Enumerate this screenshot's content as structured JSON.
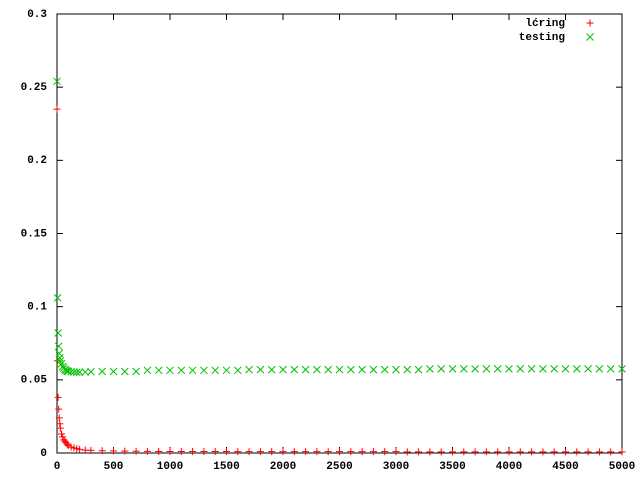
{
  "chart_data": {
    "type": "scatter",
    "x": [
      0,
      5,
      10,
      15,
      20,
      25,
      30,
      40,
      50,
      60,
      70,
      80,
      90,
      100,
      125,
      150,
      175,
      200,
      250,
      300,
      400,
      500,
      600,
      700,
      800,
      900,
      1000,
      1100,
      1200,
      1300,
      1400,
      1500,
      1600,
      1700,
      1800,
      1900,
      2000,
      2100,
      2200,
      2300,
      2400,
      2500,
      2600,
      2700,
      2800,
      2900,
      3000,
      3100,
      3200,
      3300,
      3400,
      3500,
      3600,
      3700,
      3800,
      3900,
      4000,
      4100,
      4200,
      4300,
      4400,
      4500,
      4600,
      4700,
      4800,
      4900,
      5000
    ],
    "series": [
      {
        "name": "lćring",
        "color": "#ff0000",
        "marker": "plus",
        "values": [
          0.235,
          0.063,
          0.038,
          0.03,
          0.024,
          0.02,
          0.017,
          0.013,
          0.011,
          0.009,
          0.008,
          0.007,
          0.006,
          0.005,
          0.004,
          0.0035,
          0.003,
          0.0025,
          0.002,
          0.0018,
          0.0015,
          0.0014,
          0.0013,
          0.0012,
          0.0011,
          0.001,
          0.001,
          0.001,
          0.001,
          0.001,
          0.001,
          0.001,
          0.0009,
          0.0009,
          0.0009,
          0.0009,
          0.0009,
          0.0009,
          0.0009,
          0.0009,
          0.0009,
          0.0009,
          0.0009,
          0.0009,
          0.0009,
          0.0009,
          0.0009,
          0.0008,
          0.0008,
          0.0008,
          0.0008,
          0.0008,
          0.0008,
          0.0008,
          0.0008,
          0.0008,
          0.0008,
          0.0008,
          0.0008,
          0.0008,
          0.0008,
          0.0008,
          0.0008,
          0.0008,
          0.0008,
          0.0008,
          0.0008
        ]
      },
      {
        "name": "testing",
        "color": "#00c000",
        "marker": "cross",
        "values": [
          0.254,
          0.106,
          0.082,
          0.073,
          0.068,
          0.065,
          0.063,
          0.061,
          0.059,
          0.058,
          0.057,
          0.0565,
          0.056,
          0.0558,
          0.0555,
          0.0553,
          0.0552,
          0.0552,
          0.0553,
          0.0555,
          0.0557,
          0.0557,
          0.0557,
          0.0557,
          0.0565,
          0.0565,
          0.0565,
          0.0565,
          0.0565,
          0.0565,
          0.0565,
          0.0565,
          0.0565,
          0.057,
          0.057,
          0.057,
          0.057,
          0.057,
          0.057,
          0.057,
          0.057,
          0.057,
          0.057,
          0.057,
          0.057,
          0.057,
          0.057,
          0.057,
          0.057,
          0.0575,
          0.0575,
          0.0575,
          0.0575,
          0.0575,
          0.0575,
          0.0575,
          0.0575,
          0.0575,
          0.0575,
          0.0575,
          0.0575,
          0.0575,
          0.0575,
          0.0575,
          0.0575,
          0.0575,
          0.0575
        ]
      }
    ],
    "xlim": [
      0,
      5000
    ],
    "xticks": [
      0,
      500,
      1000,
      1500,
      2000,
      2500,
      3000,
      3500,
      4000,
      4500,
      5000
    ],
    "ylim": [
      0,
      0.3
    ],
    "yticks": [
      0,
      0.05,
      0.1,
      0.15,
      0.2,
      0.25,
      0.3
    ],
    "legend": "top right",
    "grid": false
  }
}
